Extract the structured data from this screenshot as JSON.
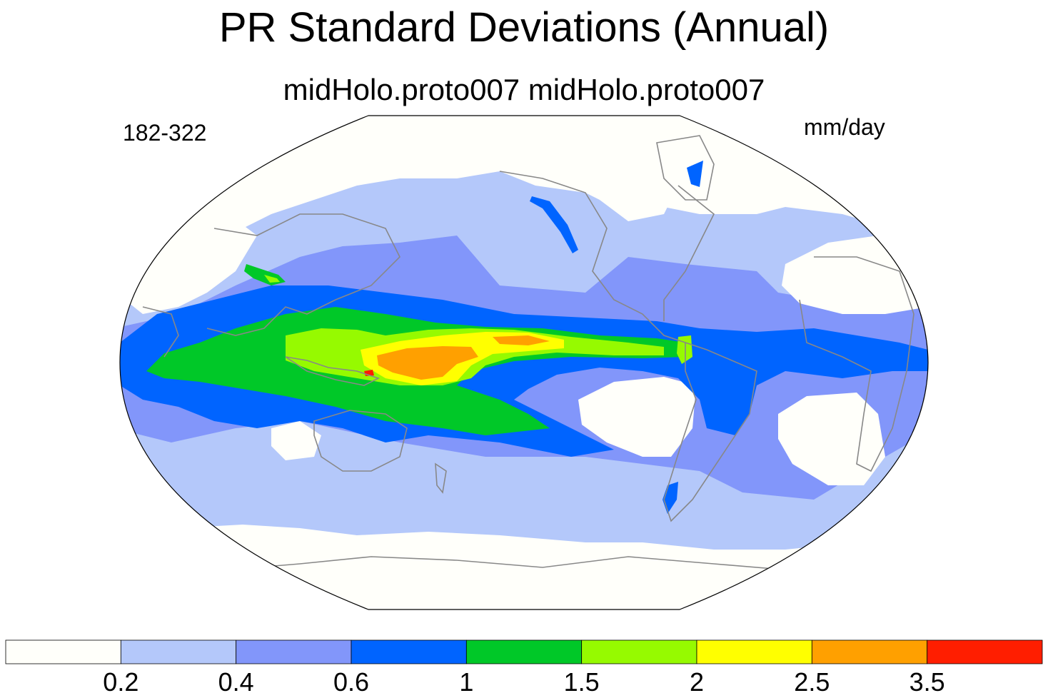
{
  "title": "PR Standard Deviations (Annual)",
  "subtitle": "midHolo.proto007  midHolo.proto007",
  "years_label": "182-322",
  "units_label": "mm/day",
  "projection": "Robinson (global, Pacific-centred)",
  "colorbar": {
    "labels": [
      "0.2",
      "0.4",
      "0.6",
      "1",
      "1.5",
      "2",
      "2.5",
      "3.5"
    ],
    "colors": [
      "#fffffa",
      "#b4c8fa",
      "#8296fa",
      "#0064ff",
      "#00c828",
      "#96fa00",
      "#ffff00",
      "#ffa000",
      "#ff1e00"
    ]
  },
  "colors": {
    "outline": "#000000",
    "coast": "#888888",
    "background": "#ffffff"
  }
}
